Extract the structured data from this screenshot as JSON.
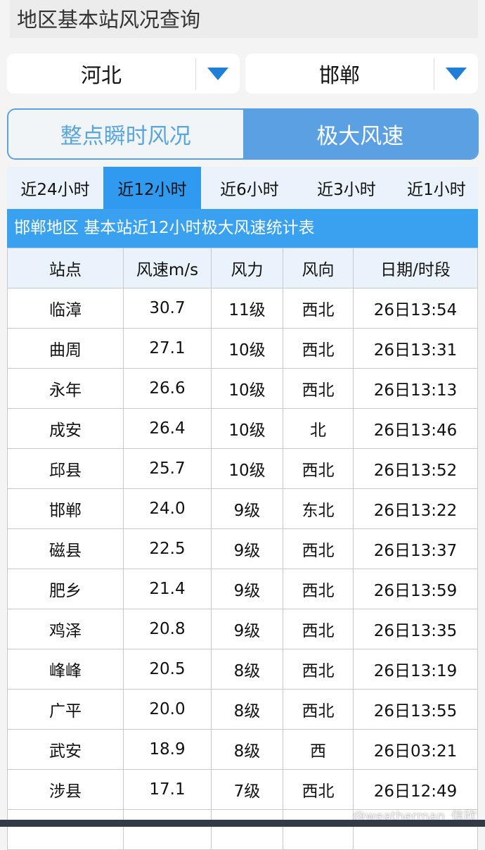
{
  "title": "地区基本站风况查询",
  "province": "河北",
  "city": "邯郸",
  "modes": [
    "整点瞬时风况",
    "极大风速"
  ],
  "active_mode": 1,
  "tabs": [
    "近24小时",
    "近12小时",
    "近6小时",
    "近3小时",
    "近1小时"
  ],
  "active_tab": 1,
  "caption": "邯郸地区 基本站近12小时极大风速统计表",
  "headers": [
    "站点",
    "风速m/s",
    "风力",
    "风向",
    "日期/时段"
  ],
  "rows": [
    [
      "临漳",
      "30.7",
      "11级",
      "西北",
      "26日13:54"
    ],
    [
      "曲周",
      "27.1",
      "10级",
      "西北",
      "26日13:31"
    ],
    [
      "永年",
      "26.6",
      "10级",
      "西北",
      "26日13:13"
    ],
    [
      "成安",
      "26.4",
      "10级",
      "北",
      "26日13:46"
    ],
    [
      "邱县",
      "25.7",
      "10级",
      "西北",
      "26日13:52"
    ],
    [
      "邯郸",
      "24.0",
      "9级",
      "东北",
      "26日13:22"
    ],
    [
      "磁县",
      "22.5",
      "9级",
      "西北",
      "26日13:37"
    ],
    [
      "肥乡",
      "21.4",
      "9级",
      "西北",
      "26日13:59"
    ],
    [
      "鸡泽",
      "20.8",
      "9级",
      "西北",
      "26日13:35"
    ],
    [
      "峰峰",
      "20.5",
      "8级",
      "西北",
      "26日13:19"
    ],
    [
      "广平",
      "20.0",
      "8级",
      "西北",
      "26日13:55"
    ],
    [
      "武安",
      "18.9",
      "8级",
      "西",
      "26日03:21"
    ],
    [
      "涉县",
      "17.1",
      "7级",
      "西北",
      "26日12:49"
    ]
  ],
  "watermark": "@weatherman_信欣",
  "colors": {
    "accent": "#2f9af0",
    "segment": "#5aa0e3",
    "arrow": "#1f7fd6"
  }
}
